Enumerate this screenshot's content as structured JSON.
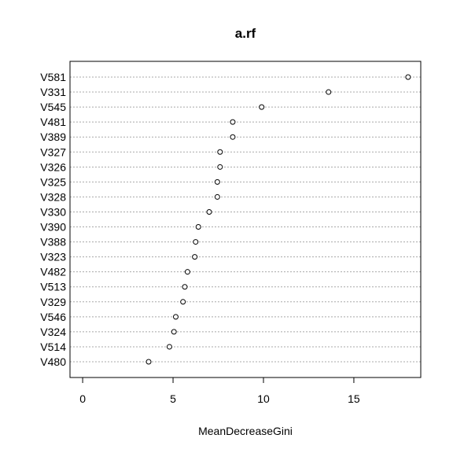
{
  "chart_data": {
    "type": "scatter",
    "title": "a.rf",
    "xlabel": "MeanDecreaseGini",
    "ylabel": "",
    "xlim": [
      -0.7,
      18.7
    ],
    "xticks": [
      0,
      5,
      10,
      15
    ],
    "grid": "horizontal-dotted",
    "categories": [
      "V581",
      "V331",
      "V545",
      "V481",
      "V389",
      "V327",
      "V326",
      "V325",
      "V328",
      "V330",
      "V390",
      "V388",
      "V323",
      "V482",
      "V513",
      "V329",
      "V546",
      "V324",
      "V514",
      "V480"
    ],
    "values": [
      18.0,
      13.6,
      9.9,
      8.3,
      8.3,
      7.6,
      7.6,
      7.45,
      7.45,
      7.0,
      6.4,
      6.25,
      6.2,
      5.8,
      5.65,
      5.55,
      5.15,
      5.05,
      4.8,
      3.65
    ]
  }
}
